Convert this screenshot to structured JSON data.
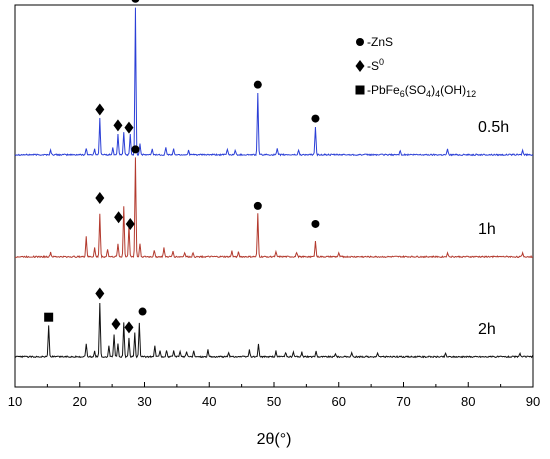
{
  "chart_data": {
    "type": "line",
    "title": "",
    "xlabel": "2θ(°)",
    "ylabel": "",
    "xlim": [
      10,
      90
    ],
    "x_ticks": [
      "10",
      "20",
      "30",
      "40",
      "50",
      "60",
      "70",
      "80",
      "90"
    ],
    "y_ticks_visible": false,
    "grid": false,
    "legend": {
      "placement": "top-right",
      "entries": [
        {
          "marker": "circle",
          "label": "-ZnS"
        },
        {
          "marker": "diamond",
          "label": "-S",
          "sup": "0"
        },
        {
          "marker": "square",
          "label_parts": [
            "-PbFe",
            "6",
            "(SO",
            "4",
            ")",
            "4",
            "(OH)",
            "12"
          ]
        }
      ]
    },
    "series": [
      {
        "name": "0.5h",
        "color": "#2b3fd6",
        "offset": 2,
        "baseline": 0.02,
        "peaks": [
          [
            15.5,
            0.04
          ],
          [
            21.0,
            0.06
          ],
          [
            22.3,
            0.05
          ],
          [
            23.1,
            0.32
          ],
          [
            25.1,
            0.06
          ],
          [
            25.9,
            0.18
          ],
          [
            26.8,
            0.2
          ],
          [
            27.8,
            0.18
          ],
          [
            28.6,
            1.3
          ],
          [
            29.3,
            0.1
          ],
          [
            31.2,
            0.05
          ],
          [
            33.3,
            0.07
          ],
          [
            34.5,
            0.05
          ],
          [
            36.8,
            0.04
          ],
          [
            42.8,
            0.05
          ],
          [
            44.0,
            0.04
          ],
          [
            47.5,
            0.55
          ],
          [
            50.5,
            0.05
          ],
          [
            53.8,
            0.04
          ],
          [
            56.4,
            0.25
          ],
          [
            69.5,
            0.04
          ],
          [
            76.8,
            0.05
          ],
          [
            88.4,
            0.04
          ]
        ],
        "markers": [
          {
            "x": 28.6,
            "y": 1.4,
            "type": "circle"
          },
          {
            "x": 47.5,
            "y": 0.64,
            "type": "circle"
          },
          {
            "x": 56.4,
            "y": 0.34,
            "type": "circle"
          },
          {
            "x": 23.1,
            "y": 0.42,
            "type": "diamond"
          },
          {
            "x": 25.9,
            "y": 0.28,
            "type": "diamond"
          },
          {
            "x": 27.6,
            "y": 0.26,
            "type": "diamond"
          }
        ]
      },
      {
        "name": "1h",
        "color": "#b33a2e",
        "offset": 1,
        "baseline": 0.02,
        "peaks": [
          [
            15.5,
            0.04
          ],
          [
            21.0,
            0.18
          ],
          [
            22.3,
            0.08
          ],
          [
            23.1,
            0.38
          ],
          [
            24.3,
            0.07
          ],
          [
            25.9,
            0.12
          ],
          [
            26.8,
            0.45
          ],
          [
            27.6,
            0.28
          ],
          [
            28.6,
            0.88
          ],
          [
            29.3,
            0.12
          ],
          [
            31.5,
            0.06
          ],
          [
            33.0,
            0.08
          ],
          [
            34.4,
            0.05
          ],
          [
            36.2,
            0.04
          ],
          [
            37.5,
            0.04
          ],
          [
            43.5,
            0.05
          ],
          [
            44.5,
            0.04
          ],
          [
            47.5,
            0.38
          ],
          [
            50.3,
            0.04
          ],
          [
            53.5,
            0.04
          ],
          [
            56.4,
            0.14
          ],
          [
            60.0,
            0.03
          ],
          [
            76.8,
            0.04
          ],
          [
            88.4,
            0.03
          ]
        ],
        "markers": [
          {
            "x": 28.6,
            "y": 0.97,
            "type": "circle"
          },
          {
            "x": 47.5,
            "y": 0.47,
            "type": "circle"
          },
          {
            "x": 56.4,
            "y": 0.31,
            "type": "circle"
          },
          {
            "x": 23.1,
            "y": 0.54,
            "type": "diamond"
          },
          {
            "x": 26.0,
            "y": 0.37,
            "type": "diamond"
          },
          {
            "x": 27.8,
            "y": 0.31,
            "type": "diamond"
          }
        ]
      },
      {
        "name": "2h",
        "color": "#111111",
        "offset": 0,
        "baseline": 0.02,
        "peaks": [
          [
            15.2,
            0.28
          ],
          [
            21.0,
            0.12
          ],
          [
            22.3,
            0.05
          ],
          [
            23.1,
            0.48
          ],
          [
            24.5,
            0.1
          ],
          [
            25.3,
            0.2
          ],
          [
            25.9,
            0.12
          ],
          [
            26.8,
            0.3
          ],
          [
            27.6,
            0.17
          ],
          [
            28.5,
            0.22
          ],
          [
            29.2,
            0.3
          ],
          [
            31.6,
            0.1
          ],
          [
            32.4,
            0.06
          ],
          [
            33.4,
            0.06
          ],
          [
            34.5,
            0.05
          ],
          [
            35.5,
            0.05
          ],
          [
            36.5,
            0.05
          ],
          [
            37.6,
            0.05
          ],
          [
            39.8,
            0.06
          ],
          [
            43.0,
            0.04
          ],
          [
            46.2,
            0.06
          ],
          [
            47.6,
            0.11
          ],
          [
            50.3,
            0.05
          ],
          [
            51.8,
            0.04
          ],
          [
            53.0,
            0.04
          ],
          [
            54.3,
            0.04
          ],
          [
            56.5,
            0.05
          ],
          [
            59.5,
            0.03
          ],
          [
            62.0,
            0.03
          ],
          [
            66.0,
            0.03
          ],
          [
            76.5,
            0.03
          ],
          [
            88.0,
            0.03
          ]
        ],
        "markers": [
          {
            "x": 15.2,
            "y": 0.37,
            "type": "square"
          },
          {
            "x": 23.1,
            "y": 0.58,
            "type": "diamond"
          },
          {
            "x": 25.6,
            "y": 0.31,
            "type": "diamond"
          },
          {
            "x": 27.6,
            "y": 0.28,
            "type": "diamond"
          },
          {
            "x": 29.7,
            "y": 0.42,
            "type": "circle"
          }
        ]
      }
    ]
  }
}
